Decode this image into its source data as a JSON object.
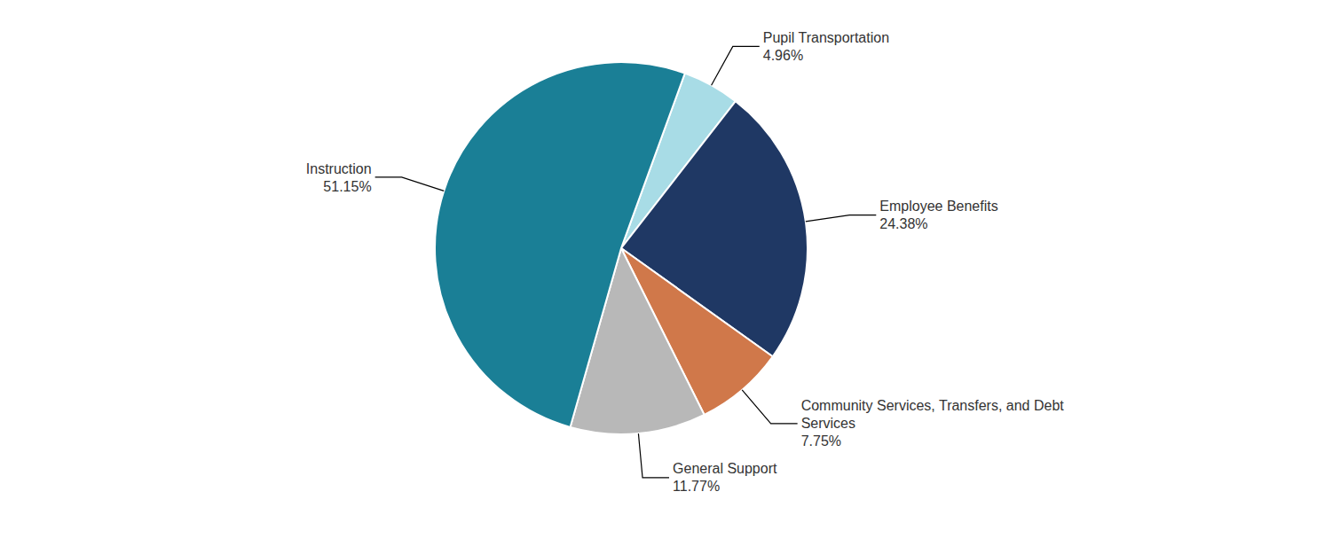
{
  "chart_data": {
    "type": "pie",
    "categories": [
      "Pupil Transportation",
      "Employee Benefits",
      "Community Services, Transfers, and Debt Services",
      "General Support",
      "Instruction"
    ],
    "values": [
      4.96,
      24.38,
      7.75,
      11.77,
      51.15
    ],
    "value_labels": [
      "4.96%",
      "24.38%",
      "7.75%",
      "11.77%",
      "51.15%"
    ],
    "colors": [
      "#a8dce6",
      "#1f3864",
      "#d0784a",
      "#b8b8b8",
      "#1a7f96"
    ]
  }
}
